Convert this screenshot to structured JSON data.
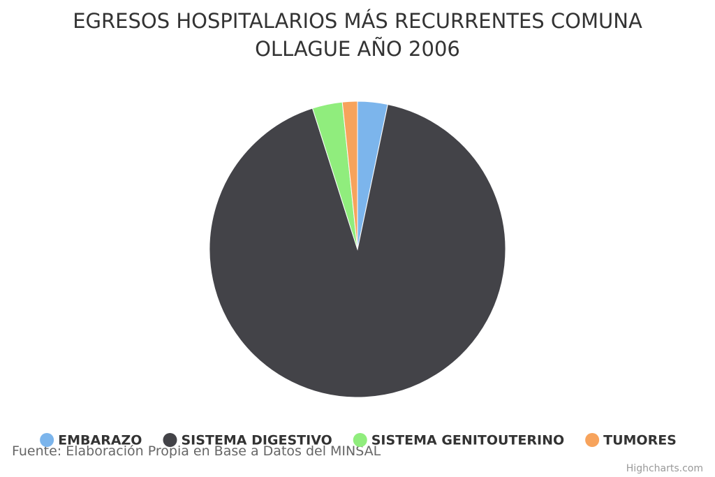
{
  "chart_data": {
    "type": "pie",
    "title": "EGRESOS HOSPITALARIOS MÁS RECURRENTES COMUNA OLLAGUE AÑO 2006",
    "categories": [
      "EMBARAZO",
      "SISTEMA DIGESTIVO",
      "SISTEMA GENITOUTERINO",
      "TUMORES"
    ],
    "values": [
      2,
      56,
      2,
      1
    ],
    "colors": [
      "#7cb5ec",
      "#434348",
      "#90ed7d",
      "#f7a35c"
    ],
    "legend": "bottom",
    "caption": "Fuente: Elaboración Propia en Base a Datos del MINSAL",
    "credits": "Highcharts.com"
  }
}
